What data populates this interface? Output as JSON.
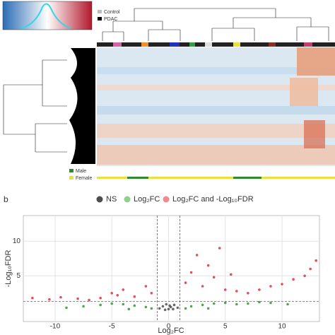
{
  "panel_label": "b",
  "group_legend": [
    "Control",
    "PDAC"
  ],
  "sex_legend": [
    "Male",
    "Female"
  ],
  "chart_data": {
    "type": "scatter",
    "x_label": "Log₂FC",
    "y_label": "-Log₁₀FDR",
    "xlim": [
      -12.8,
      13.3
    ],
    "ylim": [
      -1.6,
      13.7
    ],
    "xticks": [
      -10,
      -5,
      0,
      5,
      10
    ],
    "yticks": [
      5,
      10
    ],
    "grid": true,
    "thresholds": {
      "x": [
        -1,
        1
      ],
      "y": 1.3
    },
    "series": [
      {
        "name": "NS",
        "color": "#4d4d4d",
        "x": [
          -0.8,
          -0.5,
          -0.2,
          0,
          0.2,
          0.5,
          0.8,
          -0.3,
          0.4,
          0.1
        ],
        "y": [
          0.3,
          0.6,
          0.9,
          0.2,
          0.5,
          0.8,
          0.4,
          0.1,
          0.2,
          0.7
        ]
      },
      {
        "name": "Log₂FC",
        "color": "#2e9a2e",
        "x": [
          -9,
          -7.5,
          -6,
          -5,
          -4,
          -3,
          -2,
          -1.5,
          1.5,
          2,
          3,
          4,
          5,
          6,
          7,
          8,
          9,
          10.5,
          -3.5,
          3.5
        ],
        "y": [
          0.4,
          0.6,
          0.8,
          1.0,
          0.9,
          0.7,
          0.5,
          0.3,
          0.3,
          0.6,
          0.8,
          1.0,
          1.1,
          0.9,
          1.0,
          1.2,
          1.1,
          0.9,
          0.2,
          0.3
        ]
      },
      {
        "name": "Log₂FC and -Log₁₀FDR",
        "color": "#e0303a",
        "x": [
          -12,
          -10.5,
          -9.5,
          -8,
          -7,
          -6,
          -5,
          -4.5,
          -4,
          -3,
          -2,
          -1.5,
          1.5,
          2,
          2.5,
          3,
          3.5,
          4,
          4.5,
          5,
          5.5,
          6,
          7,
          8,
          9,
          10,
          11,
          12,
          12.5,
          13
        ],
        "y": [
          1.8,
          1.6,
          1.9,
          1.7,
          1.5,
          1.8,
          2.5,
          2.2,
          3.0,
          2.0,
          3.5,
          2.5,
          4.0,
          5.5,
          8.0,
          3.5,
          6.5,
          4.8,
          9.0,
          3.0,
          5.2,
          2.8,
          2.5,
          3.0,
          3.5,
          3.8,
          4.5,
          5.0,
          6.0,
          7.2
        ]
      }
    ]
  }
}
